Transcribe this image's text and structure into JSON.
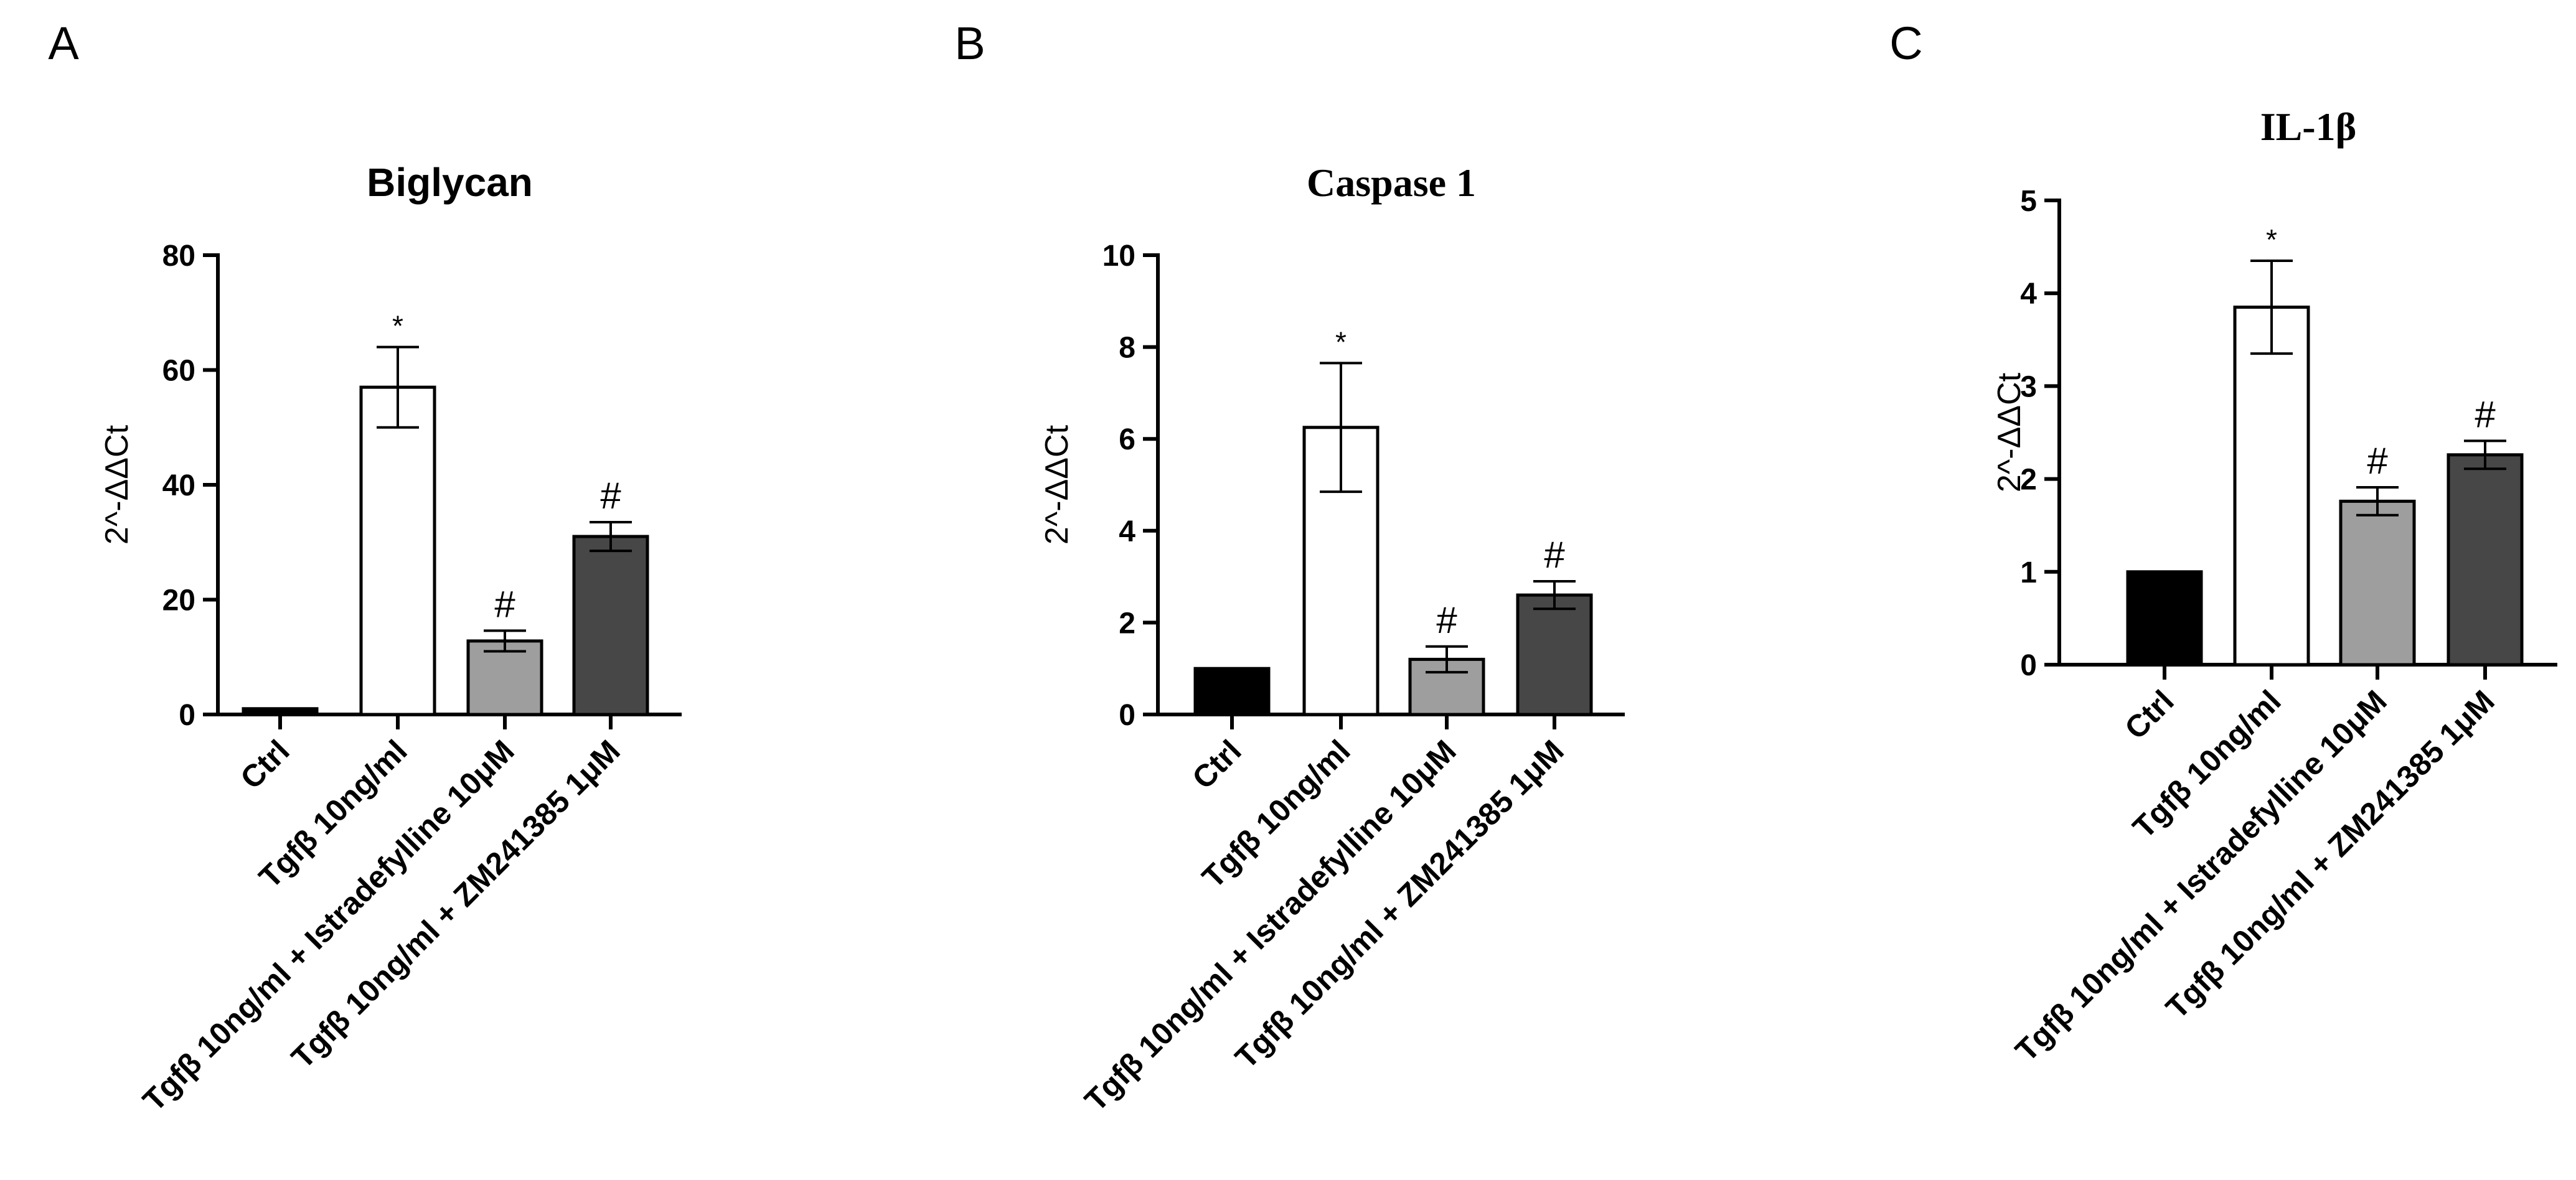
{
  "chart_data": [
    {
      "type": "bar",
      "panel": "A",
      "title": "Biglycan",
      "title_font": "sans",
      "ylabel": "2^-ΔΔCt",
      "xlabel": "",
      "ylim": [
        0,
        80
      ],
      "yticks": [
        0,
        20,
        40,
        60,
        80
      ],
      "categories": [
        "Ctrl",
        "Tgfβ 10ng/ml",
        "Tgfβ 10ng/ml + Istradefylline 10μM",
        "Tgfβ 10ng/ml + ZM241385 1μM"
      ],
      "values": [
        1,
        57,
        12.8,
        31
      ],
      "errors": [
        0,
        7,
        1.8,
        2.5
      ],
      "annotations": [
        "",
        "*",
        "#",
        "#"
      ],
      "colors": [
        "#000000",
        "#ffffff",
        "#9e9e9e",
        "#474747"
      ],
      "grid": false
    },
    {
      "type": "bar",
      "panel": "B",
      "title": "Caspase 1",
      "title_font": "serif",
      "ylabel": "2^-ΔΔCt",
      "xlabel": "",
      "ylim": [
        0,
        10
      ],
      "yticks": [
        0,
        2,
        4,
        6,
        8,
        10
      ],
      "categories": [
        "Ctrl",
        "Tgfβ 10ng/ml",
        "Tgfβ 10ng/ml + Istradefylline 10μM",
        "Tgfβ 10ng/ml + ZM241385 1μM"
      ],
      "values": [
        1,
        6.25,
        1.2,
        2.6
      ],
      "errors": [
        0,
        1.4,
        0.28,
        0.3
      ],
      "annotations": [
        "",
        "*",
        "#",
        "#"
      ],
      "colors": [
        "#000000",
        "#ffffff",
        "#9e9e9e",
        "#474747"
      ],
      "grid": false
    },
    {
      "type": "bar",
      "panel": "C",
      "title": "IL-1β",
      "title_font": "serif",
      "ylabel": "2^-ΔΔCt",
      "xlabel": "",
      "ylim": [
        0,
        5
      ],
      "yticks": [
        0,
        1,
        2,
        3,
        4,
        5
      ],
      "categories": [
        "Ctrl",
        "Tgfβ 10ng/ml",
        "Tgfβ 10ng/ml + Istradefylline 10μM",
        "Tgfβ 10ng/ml + ZM241385 1μM"
      ],
      "values": [
        1,
        3.85,
        1.76,
        2.26
      ],
      "errors": [
        0,
        0.5,
        0.15,
        0.15
      ],
      "annotations": [
        "",
        "*",
        "#",
        "#"
      ],
      "colors": [
        "#000000",
        "#ffffff",
        "#9e9e9e",
        "#474747"
      ],
      "grid": false
    }
  ]
}
